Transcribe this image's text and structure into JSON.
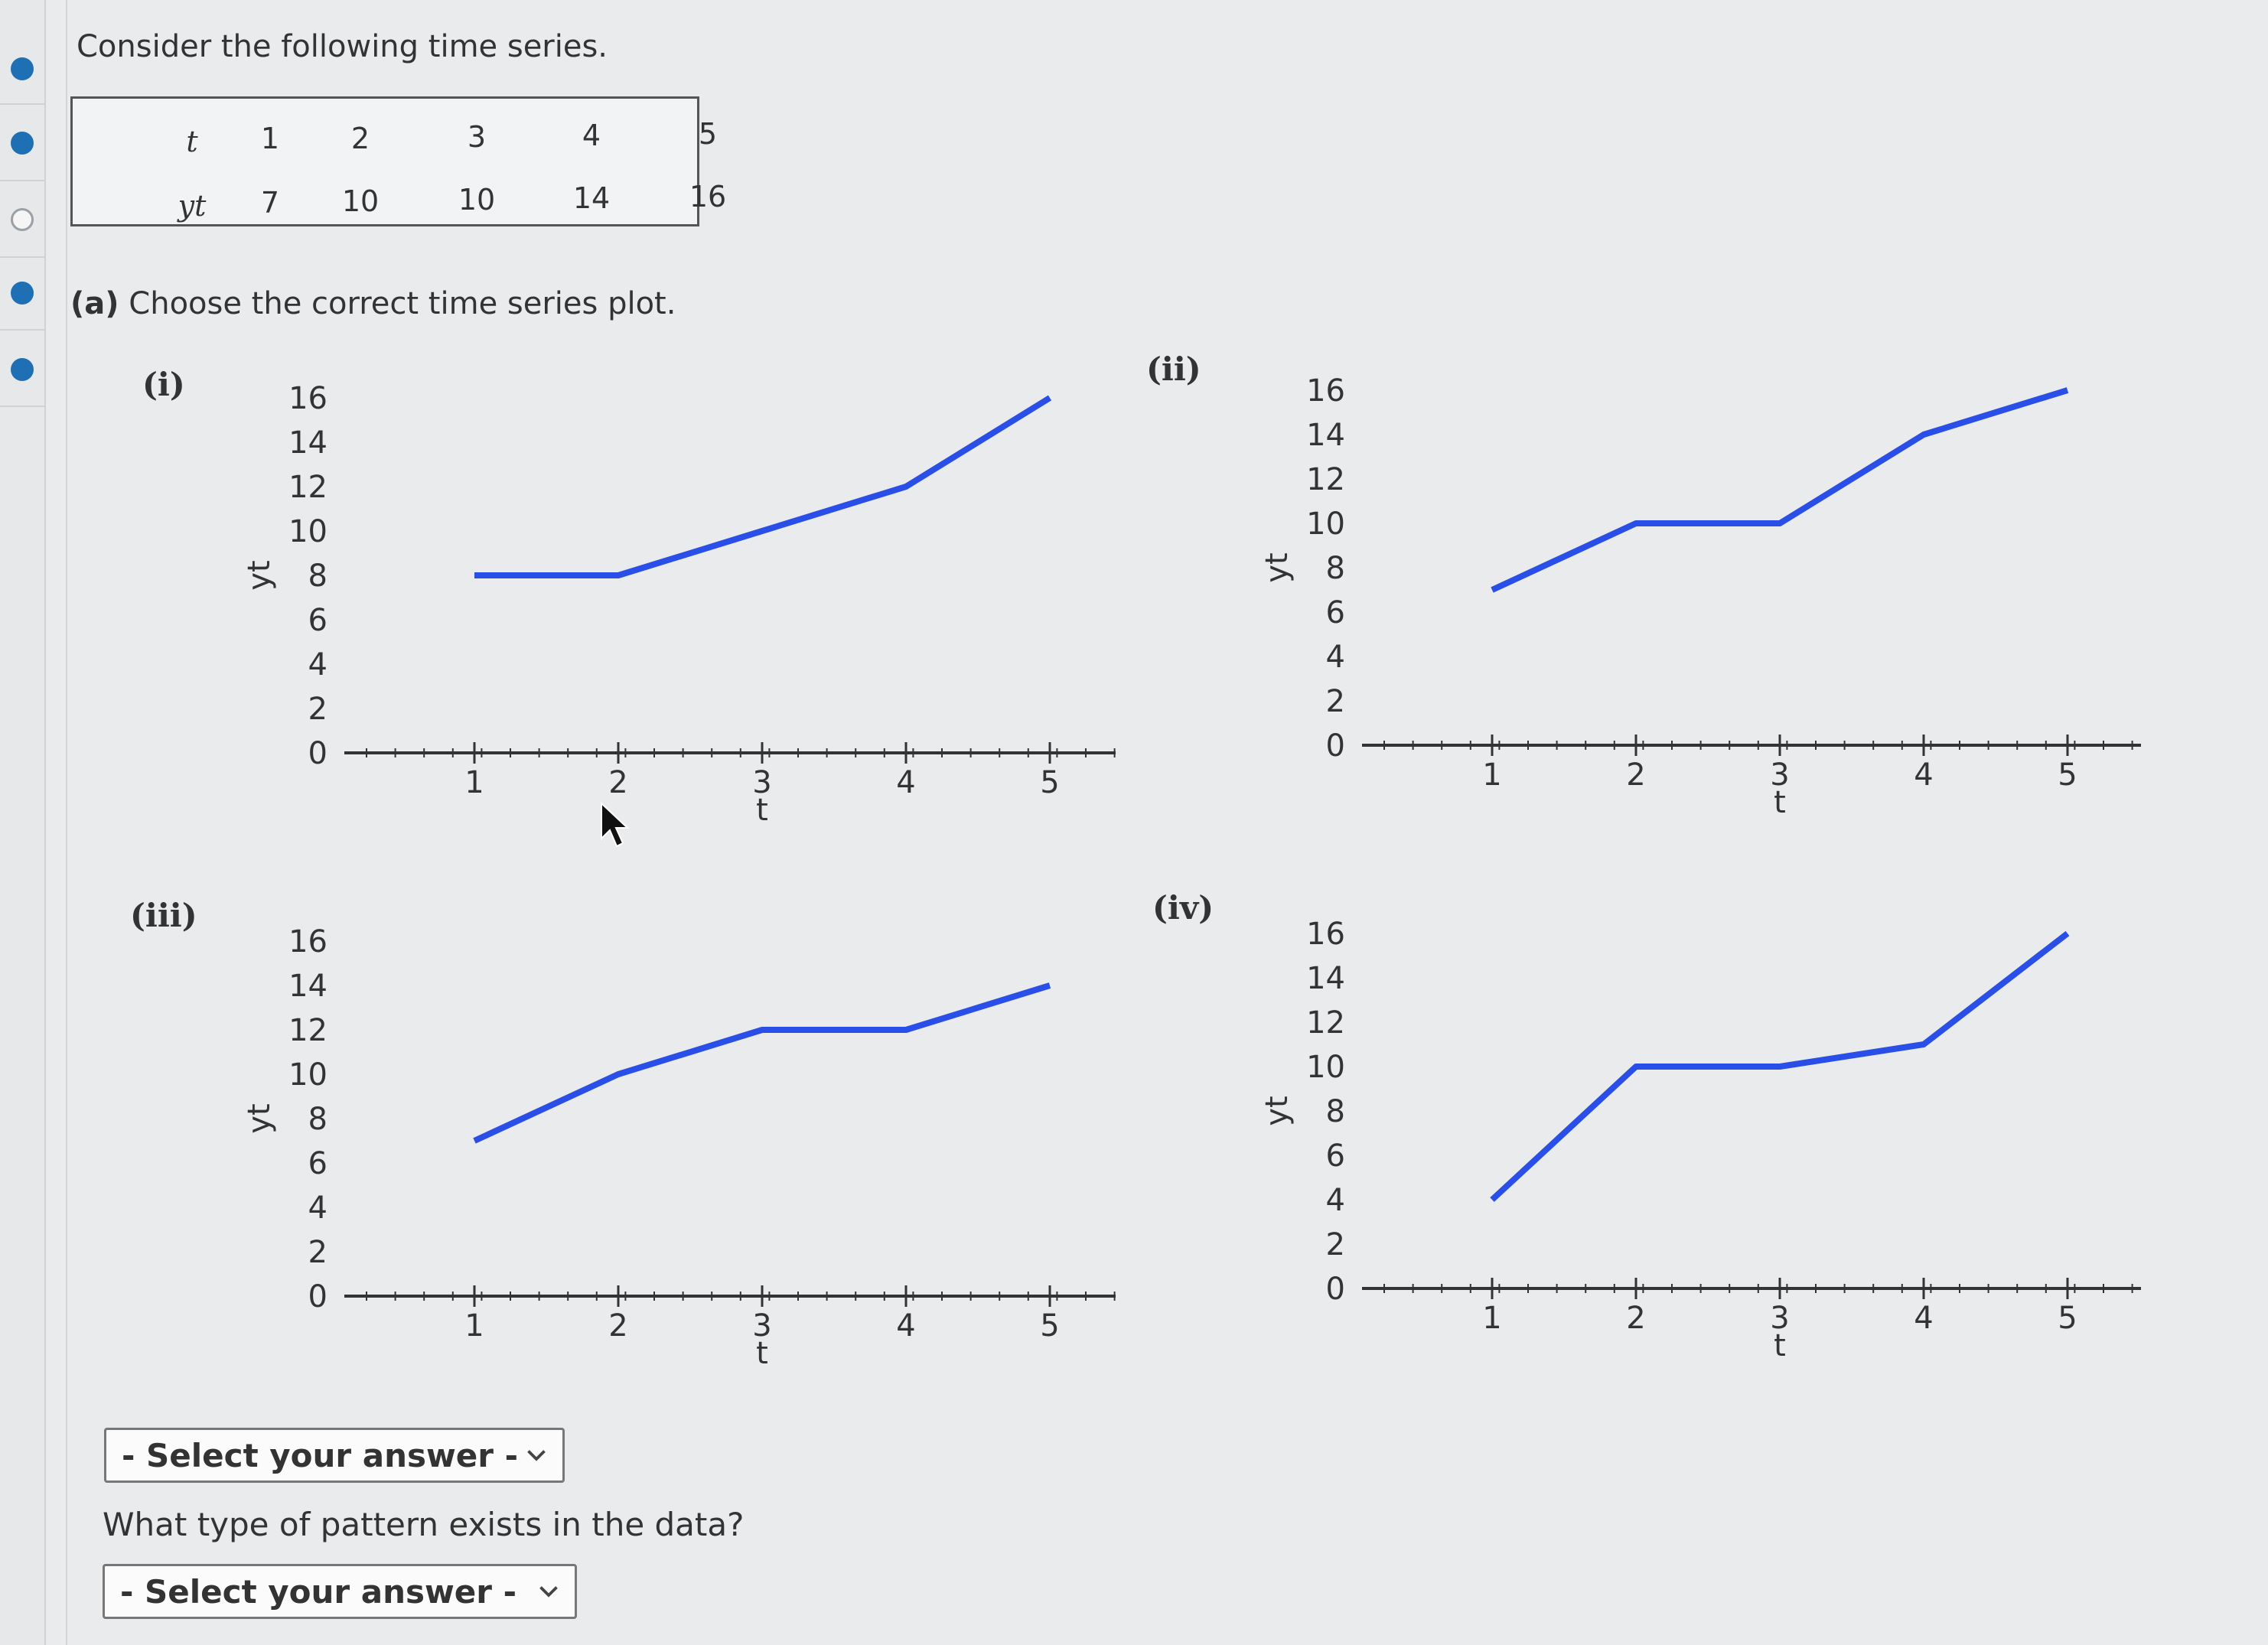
{
  "intro": "Consider the following time series.",
  "table": {
    "row_t": {
      "label": "t",
      "values": [
        "1",
        "2",
        "3",
        "4",
        "5"
      ]
    },
    "row_y": {
      "label": "yt",
      "values": [
        "7",
        "10",
        "10",
        "14",
        "16"
      ]
    }
  },
  "part_a": {
    "tag": "(a)",
    "text": "Choose the correct time series plot."
  },
  "plot_labels": [
    "(i)",
    "(ii)",
    "(iii)",
    "(iv)"
  ],
  "dropdown_1": {
    "value": "- Select your answer -"
  },
  "question_2": "What type of pattern exists in the data?",
  "dropdown_2": {
    "value": "- Select your answer -"
  },
  "colors": {
    "line": "#2a4ee8",
    "accent": "#1f6fb5"
  },
  "icons": [
    "chevron-down-icon",
    "cursor-arrow-icon"
  ],
  "chart_data": [
    {
      "type": "line",
      "xlabel": "t",
      "ylabel": "yt",
      "x": [
        1,
        2,
        3,
        4,
        5
      ],
      "y": [
        8,
        8,
        10,
        12,
        16
      ],
      "xticks": [
        1,
        2,
        3,
        4,
        5
      ],
      "yticks": [
        0,
        2,
        4,
        6,
        8,
        10,
        12,
        14,
        16
      ],
      "ylim": [
        0,
        16
      ]
    },
    {
      "type": "line",
      "xlabel": "t",
      "ylabel": "yt",
      "x": [
        1,
        2,
        3,
        4,
        5
      ],
      "y": [
        7,
        10,
        10,
        14,
        16
      ],
      "xticks": [
        1,
        2,
        3,
        4,
        5
      ],
      "yticks": [
        0,
        2,
        4,
        6,
        8,
        10,
        12,
        14,
        16
      ],
      "ylim": [
        0,
        16
      ]
    },
    {
      "type": "line",
      "xlabel": "t",
      "ylabel": "yt",
      "x": [
        1,
        2,
        3,
        4,
        5
      ],
      "y": [
        7,
        10,
        12,
        12,
        14
      ],
      "xticks": [
        1,
        2,
        3,
        4,
        5
      ],
      "yticks": [
        0,
        2,
        4,
        6,
        8,
        10,
        12,
        14,
        16
      ],
      "ylim": [
        0,
        16
      ]
    },
    {
      "type": "line",
      "xlabel": "t",
      "ylabel": "yt",
      "x": [
        1,
        2,
        3,
        4,
        5
      ],
      "y": [
        4,
        10,
        10,
        11,
        16
      ],
      "xticks": [
        1,
        2,
        3,
        4,
        5
      ],
      "yticks": [
        0,
        2,
        4,
        6,
        8,
        10,
        12,
        14,
        16
      ],
      "ylim": [
        0,
        16
      ]
    }
  ]
}
